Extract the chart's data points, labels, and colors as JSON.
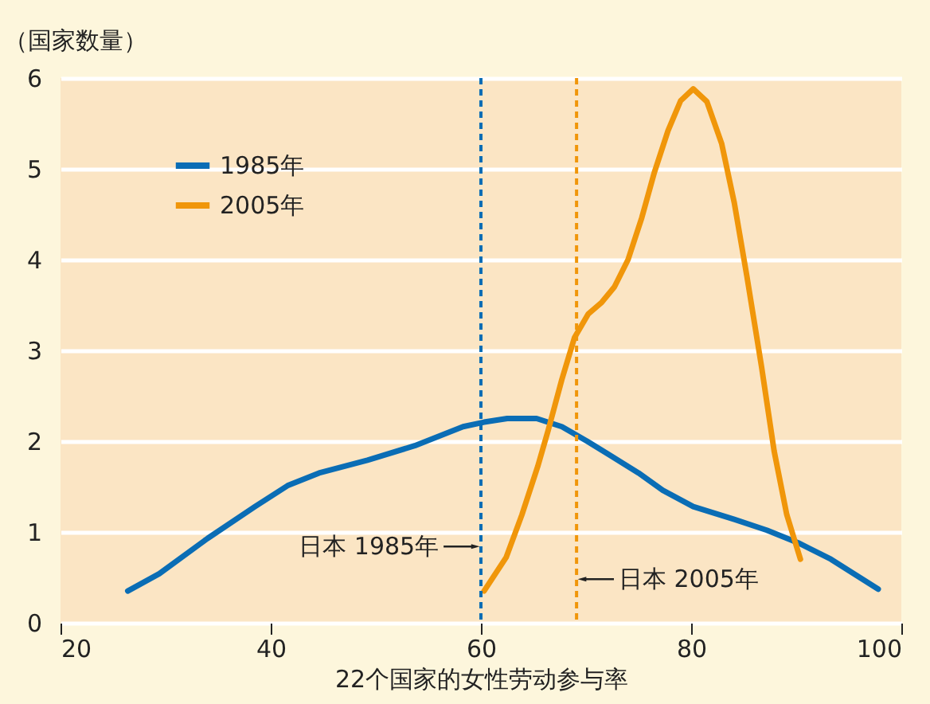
{
  "chart_data": {
    "type": "line",
    "xlabel": "22个国家的女性劳动参与率",
    "ylabel": "（国家数量）",
    "xlim": [
      20,
      100
    ],
    "xticks": [
      20,
      40,
      60,
      80,
      100
    ],
    "ylim": [
      0,
      6
    ],
    "yticks": [
      0,
      1,
      2,
      3,
      4,
      5,
      6
    ],
    "grid": "y",
    "legend": "top left",
    "line_style": "solid",
    "marker": "none",
    "series": [
      {
        "name": "1985年",
        "color": "#0a6db5",
        "x": [
          26.4,
          29.4,
          34.0,
          38.5,
          41.6,
          44.6,
          49.2,
          53.7,
          58.3,
          60.3,
          62.5,
          65.3,
          67.7,
          70.1,
          75.0,
          77.3,
          80.2,
          84.1,
          87.2,
          90.2,
          93.3,
          97.8
        ],
        "values": [
          0.35,
          0.54,
          0.93,
          1.28,
          1.51,
          1.65,
          1.79,
          1.95,
          2.16,
          2.21,
          2.25,
          2.25,
          2.16,
          2.0,
          1.65,
          1.46,
          1.28,
          1.14,
          1.02,
          0.88,
          0.7,
          0.37
        ]
      },
      {
        "name": "2005年",
        "color": "#f0960a",
        "x": [
          60.3,
          62.4,
          63.9,
          65.4,
          66.4,
          67.7,
          68.9,
          70.2,
          71.5,
          72.7,
          74.0,
          75.3,
          76.5,
          77.8,
          79.0,
          80.2,
          81.5,
          82.9,
          84.1,
          85.3,
          86.7,
          87.9,
          89.1,
          90.4
        ],
        "values": [
          0.35,
          0.72,
          1.19,
          1.72,
          2.12,
          2.68,
          3.14,
          3.4,
          3.53,
          3.7,
          4.0,
          4.46,
          4.96,
          5.42,
          5.75,
          5.88,
          5.74,
          5.28,
          4.63,
          3.82,
          2.82,
          1.89,
          1.19,
          0.7
        ]
      }
    ],
    "ref_lines": [
      {
        "axis": "x",
        "value": 60,
        "label": "日本 1985年",
        "color": "#0a6db5",
        "line_style": "dashed"
      },
      {
        "axis": "x",
        "value": 69.1,
        "label": "日本 2005年",
        "color": "#f0960a",
        "line_style": "dashed"
      }
    ]
  }
}
